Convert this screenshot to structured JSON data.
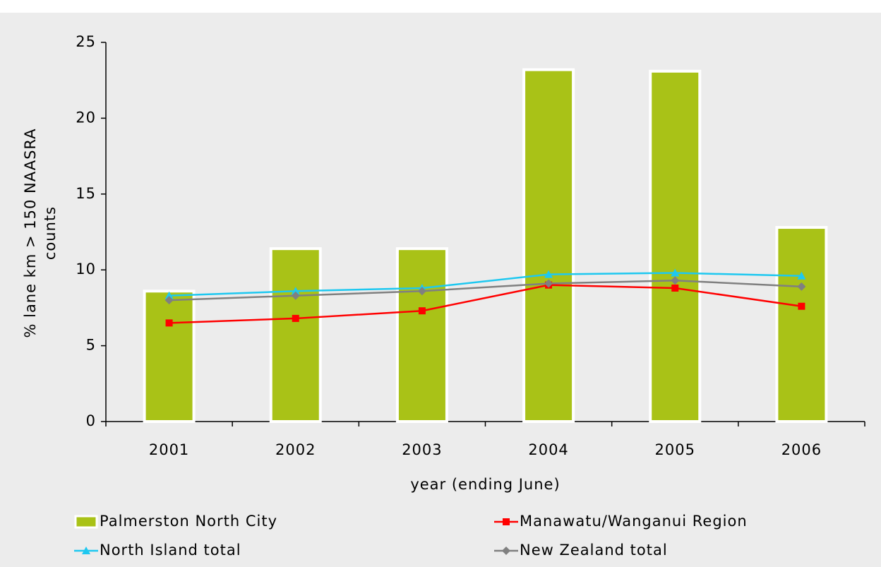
{
  "chart_data": {
    "type": "bar",
    "xlabel": "year (ending June)",
    "ylabel": [
      "% lane km > 150 NAASRA",
      "counts"
    ],
    "categories": [
      "2001",
      "2002",
      "2003",
      "2004",
      "2005",
      "2006"
    ],
    "ylim": [
      0,
      25
    ],
    "yticks": [
      0,
      5,
      10,
      15,
      20,
      25
    ],
    "series": [
      {
        "name": "Palmerston North City",
        "type": "bar",
        "color": "#a9c217",
        "values": [
          8.6,
          11.4,
          11.4,
          23.2,
          23.1,
          12.8
        ]
      },
      {
        "name": "Manawatu/Wanganui Region",
        "type": "line",
        "marker": "square",
        "color": "#ff0000",
        "values": [
          6.5,
          6.8,
          7.3,
          9.0,
          8.8,
          7.6
        ]
      },
      {
        "name": "North Island total",
        "type": "line",
        "marker": "triangle",
        "color": "#1ec8f0",
        "values": [
          8.3,
          8.6,
          8.8,
          9.7,
          9.8,
          9.6
        ]
      },
      {
        "name": "New Zealand total",
        "type": "line",
        "marker": "diamond",
        "color": "#808080",
        "values": [
          8.0,
          8.3,
          8.6,
          9.1,
          9.3,
          8.9
        ]
      }
    ]
  }
}
